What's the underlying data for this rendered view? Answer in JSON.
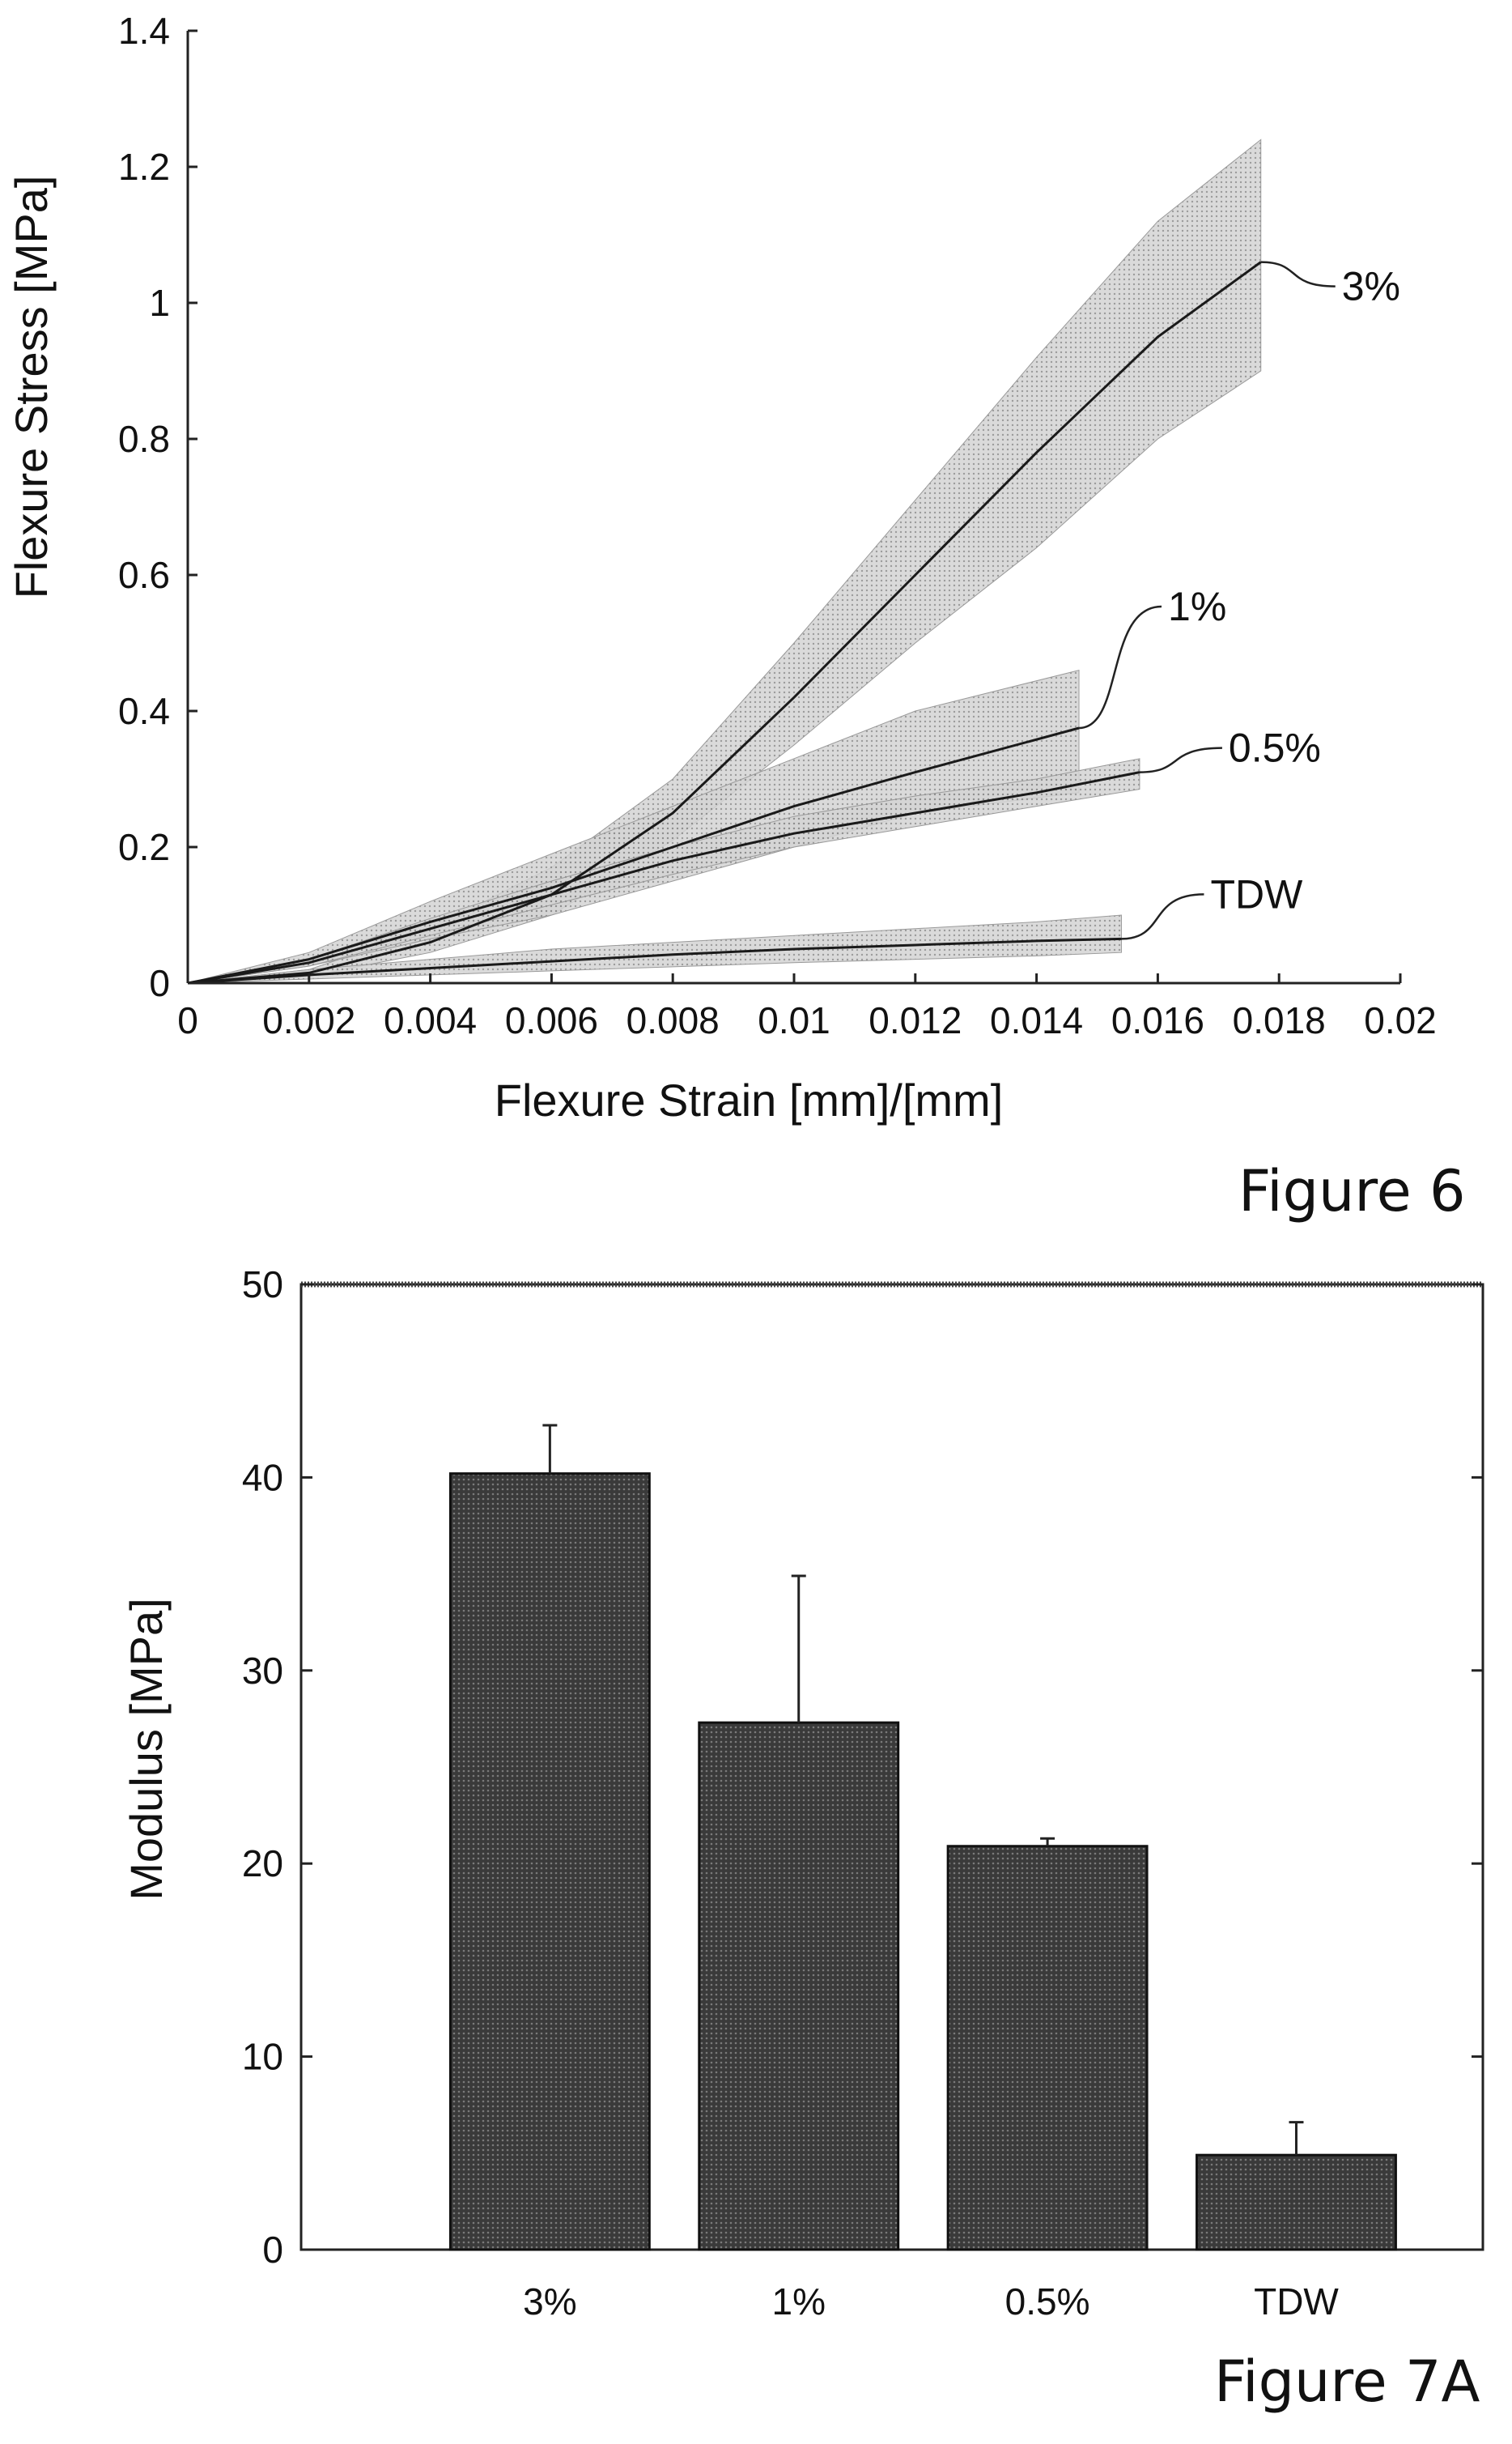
{
  "captions": {
    "fig6": "Figure 6",
    "fig7": "Figure 7A"
  },
  "chart_data": [
    {
      "type": "line",
      "title": "",
      "xlabel": "Flexure Strain [mm]/[mm]",
      "ylabel": "Flexure Stress [MPa]",
      "xlim": [
        0,
        0.02
      ],
      "ylim": [
        0,
        1.4
      ],
      "x_ticks": [
        "0",
        "0.002",
        "0.004",
        "0.006",
        "0.008",
        "0.01",
        "0.012",
        "0.014",
        "0.016",
        "0.018",
        "0.02"
      ],
      "y_ticks": [
        "0",
        "0.2",
        "0.4",
        "0.6",
        "0.8",
        "1",
        "1.2",
        "1.4"
      ],
      "grid": false,
      "band_color": "#bdbdbd",
      "line_color": "#1a1a1a",
      "series": [
        {
          "name": "3%",
          "x": [
            0,
            0.002,
            0.004,
            0.006,
            0.008,
            0.01,
            0.012,
            0.014,
            0.016,
            0.0177
          ],
          "y": [
            0,
            0.015,
            0.06,
            0.13,
            0.25,
            0.42,
            0.6,
            0.78,
            0.95,
            1.06
          ],
          "upper": [
            0,
            0.02,
            0.08,
            0.17,
            0.3,
            0.5,
            0.71,
            0.92,
            1.12,
            1.24
          ],
          "lower": [
            0,
            0.01,
            0.045,
            0.1,
            0.21,
            0.35,
            0.5,
            0.64,
            0.8,
            0.9
          ],
          "label_point": [
            0.0177,
            1.06
          ]
        },
        {
          "name": "1%",
          "x": [
            0,
            0.002,
            0.004,
            0.006,
            0.008,
            0.01,
            0.012,
            0.0147
          ],
          "y": [
            0,
            0.035,
            0.09,
            0.14,
            0.2,
            0.26,
            0.31,
            0.375
          ],
          "upper": [
            0,
            0.045,
            0.12,
            0.19,
            0.26,
            0.33,
            0.4,
            0.46
          ],
          "lower": [
            0,
            0.025,
            0.065,
            0.1,
            0.15,
            0.2,
            0.25,
            0.28
          ],
          "label_point": [
            0.0147,
            0.375
          ]
        },
        {
          "name": "0.5%",
          "x": [
            0,
            0.002,
            0.004,
            0.006,
            0.008,
            0.01,
            0.012,
            0.014,
            0.0157
          ],
          "y": [
            0,
            0.03,
            0.08,
            0.13,
            0.18,
            0.22,
            0.25,
            0.28,
            0.31
          ],
          "upper": [
            0,
            0.035,
            0.095,
            0.15,
            0.2,
            0.245,
            0.275,
            0.3,
            0.33
          ],
          "lower": [
            0,
            0.025,
            0.07,
            0.115,
            0.16,
            0.2,
            0.23,
            0.26,
            0.285
          ],
          "label_point": [
            0.0157,
            0.31
          ]
        },
        {
          "name": "TDW",
          "x": [
            0,
            0.002,
            0.004,
            0.006,
            0.008,
            0.01,
            0.012,
            0.014,
            0.0154
          ],
          "y": [
            0,
            0.012,
            0.022,
            0.032,
            0.042,
            0.05,
            0.056,
            0.062,
            0.065
          ],
          "upper": [
            0,
            0.02,
            0.035,
            0.05,
            0.06,
            0.07,
            0.08,
            0.09,
            0.1
          ],
          "lower": [
            0,
            0.006,
            0.012,
            0.018,
            0.024,
            0.03,
            0.035,
            0.04,
            0.045
          ],
          "label_point": [
            0.0154,
            0.065
          ]
        }
      ]
    },
    {
      "type": "bar",
      "title": "",
      "xlabel": "",
      "ylabel": "Modulus [MPa]",
      "ylim": [
        0,
        50
      ],
      "y_ticks": [
        "0",
        "10",
        "20",
        "30",
        "40",
        "50"
      ],
      "grid": false,
      "bar_color": "#4a4a4a",
      "categories": [
        "3%",
        "1%",
        "0.5%",
        "TDW"
      ],
      "values": [
        40.2,
        27.3,
        20.9,
        4.9
      ],
      "error_upper": [
        42.7,
        34.9,
        21.3,
        6.6
      ]
    }
  ]
}
